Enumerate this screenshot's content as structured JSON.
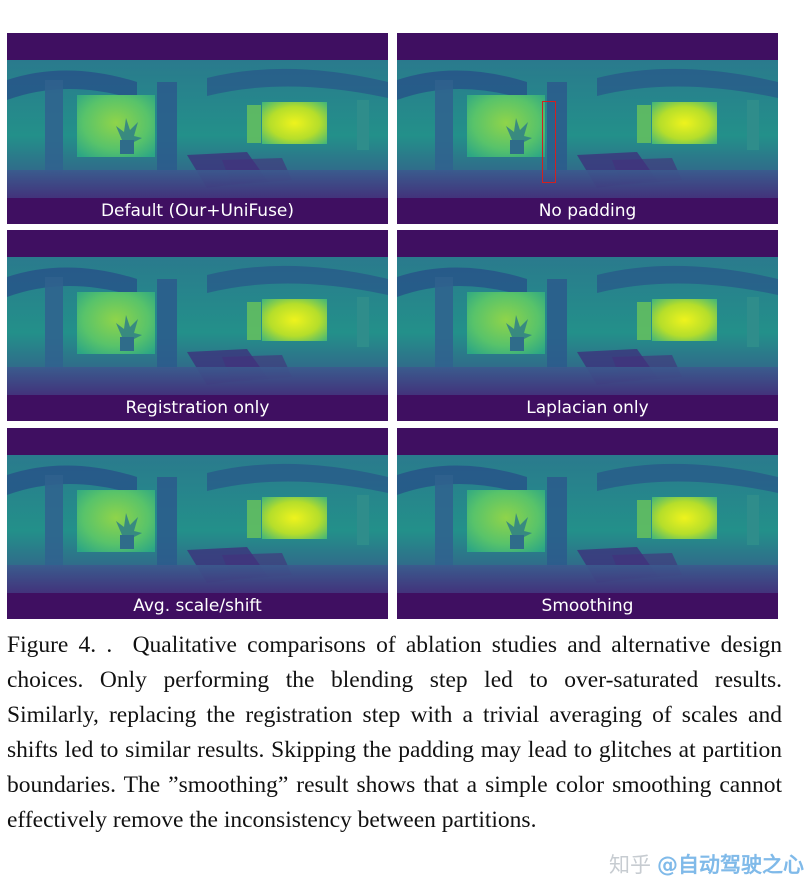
{
  "panels": [
    {
      "id": "p1",
      "caption": "Default (Our+UniFuse)"
    },
    {
      "id": "p2",
      "caption": "No padding"
    },
    {
      "id": "p3",
      "caption": "Registration only"
    },
    {
      "id": "p4",
      "caption": "Laplacian only"
    },
    {
      "id": "p5",
      "caption": "Avg. scale/shift"
    },
    {
      "id": "p6",
      "caption": "Smoothing"
    }
  ],
  "figure_caption": {
    "label": "Figure 4. .",
    "text": "Qualitative comparisons of ablation studies and alternative design choices. Only performing the blending step led to over-saturated results. Similarly, replacing the registration step with a trivial averaging of scales and shifts led to similar results. Skipping the padding may lead to glitches at partition boundaries. The ”smoothing” result shows that a simple color smoothing cannot effectively remove the inconsistency between partitions."
  },
  "watermark": {
    "zh": "知乎",
    "handle": "@自动驾驶之心"
  },
  "colors": {
    "panel_border": "#3f0f61",
    "bright": "#eaf01e",
    "mid": "#2a9a86",
    "dark": "#3a2e78",
    "highlight_box": "#d32020"
  }
}
